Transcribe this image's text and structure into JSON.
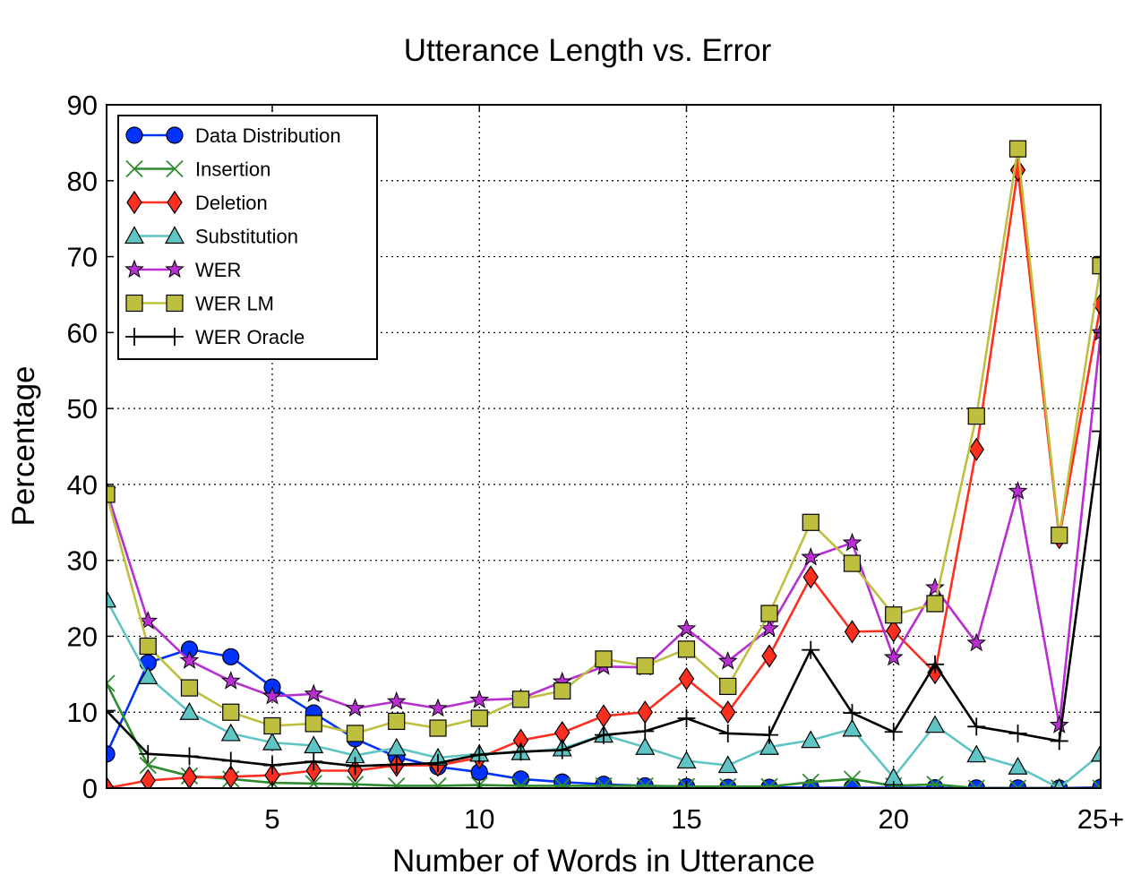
{
  "chart_data": {
    "type": "line",
    "title": "Utterance Length vs. Error",
    "xlabel": "Number of Words in Utterance",
    "ylabel": "Percentage",
    "xlim": [
      1,
      25
    ],
    "ylim": [
      0,
      90
    ],
    "grid": true,
    "legend_position": "top-left",
    "x": [
      1,
      2,
      3,
      4,
      5,
      6,
      7,
      8,
      9,
      10,
      11,
      12,
      13,
      14,
      15,
      16,
      17,
      18,
      19,
      20,
      21,
      22,
      23,
      24,
      25
    ],
    "xticks": [
      {
        "value": 5,
        "label": "5"
      },
      {
        "value": 10,
        "label": "10"
      },
      {
        "value": 15,
        "label": "15"
      },
      {
        "value": 20,
        "label": "20"
      },
      {
        "value": 25,
        "label": "25+"
      }
    ],
    "yticks": [
      {
        "value": 0,
        "label": "0"
      },
      {
        "value": 10,
        "label": "10"
      },
      {
        "value": 20,
        "label": "20"
      },
      {
        "value": 30,
        "label": "30"
      },
      {
        "value": 40,
        "label": "40"
      },
      {
        "value": 50,
        "label": "50"
      },
      {
        "value": 60,
        "label": "60"
      },
      {
        "value": 70,
        "label": "70"
      },
      {
        "value": 80,
        "label": "80"
      },
      {
        "value": 90,
        "label": "90"
      }
    ],
    "series": [
      {
        "name": "Data Distribution",
        "color": "#0033ff",
        "marker": "circle",
        "values": [
          4.5,
          16.5,
          18.3,
          17.3,
          13.3,
          9.9,
          6.5,
          4.1,
          2.8,
          2.1,
          1.2,
          0.8,
          0.5,
          0.3,
          0.2,
          0.1,
          0.1,
          0.05,
          0.05,
          0.05,
          0.05,
          0.02,
          0.02,
          0.01,
          0.1
        ]
      },
      {
        "name": "Insertion",
        "color": "#2e8b2e",
        "marker": "x",
        "values": [
          13.8,
          3.0,
          1.6,
          1.2,
          0.7,
          0.6,
          0.5,
          0.3,
          0.3,
          0.4,
          0.3,
          0.3,
          0.3,
          0.3,
          0.2,
          0.2,
          0.2,
          0.8,
          1.2,
          0.3,
          0.5,
          0.0,
          0.0,
          0.0,
          0.0
        ]
      },
      {
        "name": "Deletion",
        "color": "#ff2e1f",
        "marker": "diamond",
        "values": [
          0.0,
          1.0,
          1.4,
          1.5,
          1.7,
          2.3,
          2.3,
          3.0,
          3.0,
          4.0,
          6.3,
          7.3,
          9.5,
          10.0,
          14.4,
          10.0,
          17.4,
          27.8,
          20.6,
          20.7,
          15.2,
          44.6,
          81.4,
          33.0,
          63.7
        ]
      },
      {
        "name": "Substitution",
        "color": "#5ec4c4",
        "marker": "triangle",
        "values": [
          24.8,
          14.7,
          10.0,
          7.2,
          6.0,
          5.6,
          4.3,
          5.3,
          4.0,
          4.5,
          4.7,
          5.2,
          7.0,
          5.4,
          3.6,
          3.0,
          5.4,
          6.3,
          7.8,
          1.4,
          8.3,
          4.4,
          2.8,
          0.0,
          4.5
        ]
      },
      {
        "name": "WER",
        "color": "#b72ed1",
        "marker": "star",
        "values": [
          39.2,
          22.0,
          16.8,
          14.1,
          12.1,
          12.4,
          10.5,
          11.4,
          10.5,
          11.6,
          11.8,
          14.0,
          16.0,
          15.9,
          21.0,
          16.7,
          21.0,
          30.4,
          32.3,
          17.2,
          26.4,
          19.1,
          39.1,
          8.3,
          60.0
        ]
      },
      {
        "name": "WER LM",
        "color": "#bfbf3f",
        "marker": "square",
        "values": [
          38.7,
          18.7,
          13.2,
          10.0,
          8.2,
          8.5,
          7.2,
          8.8,
          7.9,
          9.2,
          11.7,
          12.8,
          17.0,
          16.1,
          18.3,
          13.4,
          23.0,
          35.0,
          29.6,
          22.8,
          24.3,
          49.0,
          84.2,
          33.3,
          68.8
        ]
      },
      {
        "name": "WER Oracle",
        "color": "#000000",
        "marker": "plus",
        "values": [
          10.2,
          4.5,
          4.2,
          3.6,
          3.0,
          3.5,
          2.9,
          3.1,
          3.3,
          4.4,
          4.8,
          5.0,
          7.0,
          7.5,
          9.2,
          7.2,
          7.0,
          18.2,
          9.9,
          7.4,
          16.3,
          8.1,
          7.2,
          6.2,
          47.0
        ]
      }
    ]
  }
}
